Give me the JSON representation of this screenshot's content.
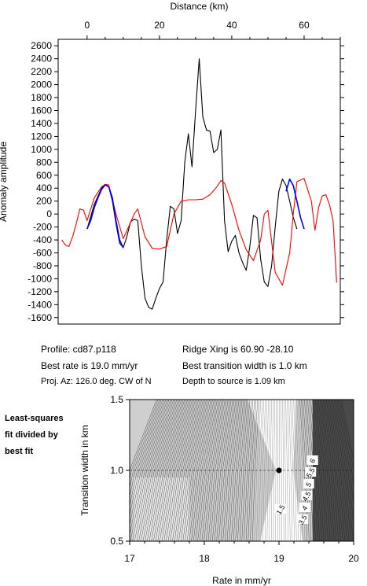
{
  "chart_data": [
    {
      "type": "line",
      "title": "",
      "xlabel": "Distance (km)",
      "ylabel": "Anomaly amplitude",
      "xlim": [
        -8,
        70
      ],
      "ylim": [
        -1700,
        2700
      ],
      "xticks": [
        "0",
        "20",
        "40",
        "60"
      ],
      "yticks": [
        "2600",
        "2400",
        "2200",
        "2000",
        "1800",
        "1600",
        "1400",
        "1200",
        "1000",
        "800",
        "600",
        "400",
        "200",
        "0",
        "-200",
        "-400",
        "-600",
        "-800",
        "-1000",
        "-1200",
        "-1400",
        "-1600"
      ],
      "series": [
        {
          "color": "#000000",
          "x": [
            0,
            2,
            4,
            5,
            6,
            7,
            8,
            9,
            10,
            11,
            12,
            13,
            14,
            15,
            16,
            17,
            18,
            19,
            20,
            21,
            22,
            23,
            24,
            25,
            26,
            27,
            28,
            29,
            30,
            31,
            32,
            33,
            34,
            35,
            36,
            37,
            38,
            39,
            40,
            41,
            42,
            43,
            44,
            45,
            46,
            47,
            48,
            49,
            50,
            51,
            52,
            53,
            54,
            55,
            56,
            57,
            58,
            59,
            60,
            61,
            62
          ],
          "y": [
            -230,
            150,
            400,
            460,
            420,
            200,
            -150,
            -450,
            -520,
            -350,
            -120,
            -80,
            -100,
            -800,
            -1300,
            -1440,
            -1470,
            -1300,
            -1150,
            -1050,
            -400,
            120,
            80,
            -300,
            -100,
            800,
            1240,
            730,
            1600,
            2400,
            1500,
            1300,
            1280,
            950,
            1000,
            1300,
            -100,
            -580,
            -420,
            -330,
            -600,
            -750,
            -870,
            -500,
            -20,
            -60,
            -700,
            -1050,
            -1120,
            -800,
            -200,
            350,
            540,
            440,
            200,
            -50,
            -230,
            null,
            null,
            null,
            null
          ]
        },
        {
          "color": "#ff0000",
          "x": [
            -7,
            -6,
            -5,
            -4,
            -3,
            -2,
            -1,
            0,
            2,
            4,
            5,
            6,
            8,
            10,
            12,
            13,
            14,
            16,
            18,
            20,
            22,
            24,
            26,
            28,
            30,
            32,
            34,
            36,
            37,
            38,
            40,
            42,
            44,
            46,
            48,
            49,
            50,
            52,
            54,
            56,
            57,
            58,
            60,
            62,
            63,
            64,
            65,
            66,
            67,
            68,
            69
          ],
          "y": [
            -400,
            -480,
            -500,
            -350,
            -150,
            80,
            60,
            -100,
            250,
            420,
            460,
            450,
            0,
            -380,
            -130,
            0,
            80,
            -350,
            -530,
            -540,
            -500,
            0,
            200,
            220,
            220,
            230,
            300,
            430,
            520,
            480,
            150,
            -250,
            -550,
            -720,
            -400,
            0,
            60,
            -900,
            -1100,
            -600,
            0,
            500,
            550,
            200,
            -250,
            100,
            280,
            300,
            150,
            -100,
            -1060
          ]
        },
        {
          "color": "#0000ff",
          "x": [
            0,
            1,
            2,
            3,
            4,
            5,
            6,
            7,
            8,
            9,
            10,
            11,
            12,
            13,
            14,
            15,
            16,
            17,
            18,
            19,
            20,
            21,
            22,
            23,
            24,
            25,
            26,
            27,
            28,
            29,
            30,
            31,
            32,
            33,
            34,
            35,
            36,
            37,
            38,
            39,
            40,
            41,
            42,
            43,
            44,
            45,
            46,
            47,
            48,
            49,
            50,
            51,
            52,
            53,
            54,
            55,
            56,
            57,
            58,
            59,
            60,
            61,
            62
          ],
          "y": [
            -230,
            -100,
            100,
            250,
            380,
            450,
            420,
            250,
            -100,
            -400,
            -520,
            null,
            null,
            null,
            null,
            null,
            null,
            null,
            null,
            null,
            null,
            null,
            null,
            null,
            null,
            null,
            null,
            null,
            null,
            null,
            null,
            null,
            null,
            null,
            null,
            null,
            null,
            null,
            null,
            null,
            null,
            null,
            null,
            null,
            null,
            null,
            null,
            null,
            null,
            null,
            null,
            null,
            null,
            null,
            null,
            350,
            540,
            440,
            200,
            -50,
            -230,
            null,
            null
          ]
        }
      ]
    },
    {
      "type": "heatmap",
      "title": "",
      "xlabel": "Rate in mm/yr",
      "ylabel": "Transition width in km",
      "xlim": [
        17,
        20
      ],
      "ylim": [
        0.5,
        1.5
      ],
      "xticks": [
        "17",
        "18",
        "19",
        "20"
      ],
      "yticks": [
        "1.5",
        "1.0",
        "0.5"
      ],
      "best_fit": {
        "rate": 19.0,
        "width": 1.0
      },
      "contour_labels": [
        "6",
        "5.5",
        "5",
        "4.5",
        "4",
        "3.5",
        "1.5"
      ],
      "colormap": "grey-lines"
    }
  ],
  "info": {
    "profile": "Profile: cd87.p118",
    "best_rate": "Best rate is 19.0 mm/yr",
    "proj_az": "Proj. Az: 126.0 deg. CW of N",
    "ridge_xing": "Ridge Xing is 60.90 -28.10",
    "best_width": "Best transition width is 1.0 km",
    "depth": "Depth to source is   1.09 km"
  },
  "note": {
    "line1": "Least-squares",
    "line2": "fit divided by",
    "line3": "best fit"
  },
  "colors": {
    "observed": "#000000",
    "model": "#ff0000",
    "fit": "#0000ff"
  }
}
